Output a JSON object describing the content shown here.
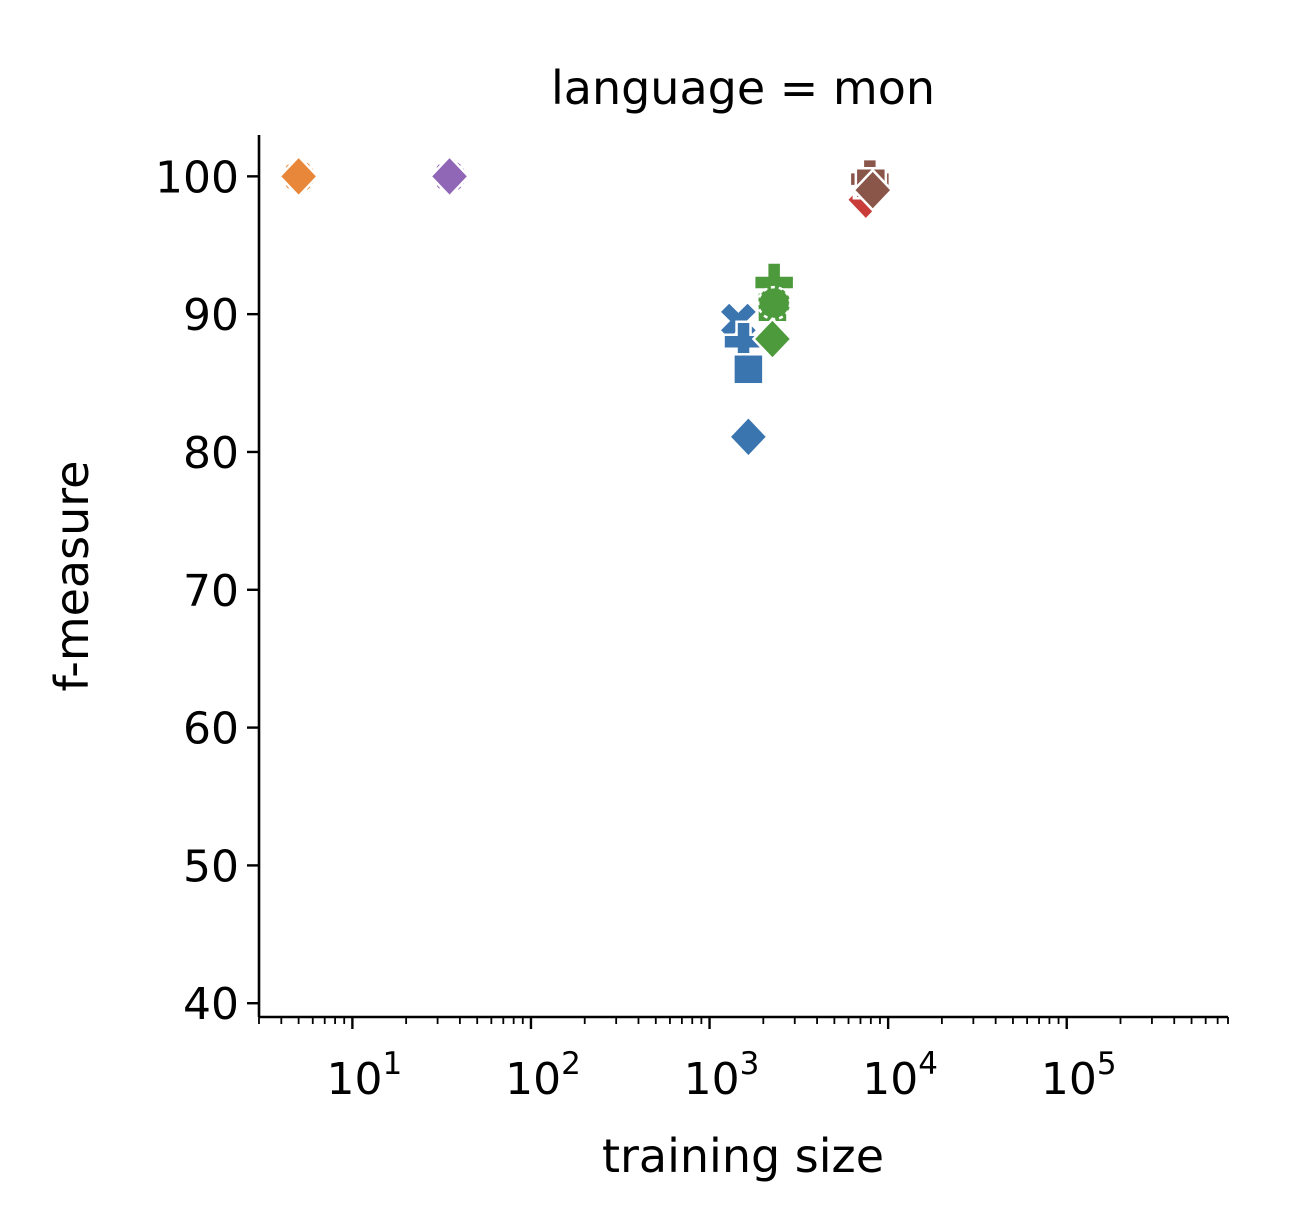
{
  "chart_data": {
    "type": "scatter",
    "title": "language = mon",
    "xlabel": "training size",
    "ylabel": "f-measure",
    "xscale": "log",
    "xlim": [
      3,
      800000
    ],
    "ylim": [
      39,
      103
    ],
    "grid": false,
    "legend": "none",
    "x_ticks": [
      {
        "value": 10,
        "base": "10",
        "exp": "1"
      },
      {
        "value": 100,
        "base": "10",
        "exp": "2"
      },
      {
        "value": 1000,
        "base": "10",
        "exp": "3"
      },
      {
        "value": 10000,
        "base": "10",
        "exp": "4"
      },
      {
        "value": 100000,
        "base": "10",
        "exp": "5"
      }
    ],
    "y_ticks": [
      40,
      50,
      60,
      70,
      80,
      90,
      100
    ],
    "series": [
      {
        "color": "#3a75b0",
        "points": [
          {
            "x": 1450,
            "y": 89.5,
            "marker": "x"
          },
          {
            "x": 1550,
            "y": 88.0,
            "marker": "plus"
          },
          {
            "x": 1650,
            "y": 86.0,
            "marker": "square"
          },
          {
            "x": 1650,
            "y": 81.1,
            "marker": "diamond"
          }
        ]
      },
      {
        "color": "#e8873a",
        "points": [
          {
            "x": 5,
            "y": 100,
            "marker": "circle"
          },
          {
            "x": 5,
            "y": 100,
            "marker": "diamond"
          }
        ]
      },
      {
        "color": "#4d9a3c",
        "points": [
          {
            "x": 2300,
            "y": 92.3,
            "marker": "plus"
          },
          {
            "x": 2250,
            "y": 90.5,
            "marker": "square"
          },
          {
            "x": 2300,
            "y": 90.8,
            "marker": "circle"
          },
          {
            "x": 2250,
            "y": 88.2,
            "marker": "diamond"
          }
        ]
      },
      {
        "color": "#c83c3a",
        "points": [
          {
            "x": 7500,
            "y": 98.3,
            "marker": "diamond"
          },
          {
            "x": 7800,
            "y": 99.5,
            "marker": "square"
          }
        ]
      },
      {
        "color": "#9067b6",
        "points": [
          {
            "x": 35,
            "y": 100,
            "marker": "circle"
          },
          {
            "x": 35,
            "y": 100,
            "marker": "diamond"
          }
        ]
      },
      {
        "color": "#8b564a",
        "points": [
          {
            "x": 7900,
            "y": 99.8,
            "marker": "plus"
          },
          {
            "x": 8000,
            "y": 99.5,
            "marker": "square"
          },
          {
            "x": 8200,
            "y": 99.0,
            "marker": "diamond"
          }
        ]
      }
    ]
  }
}
